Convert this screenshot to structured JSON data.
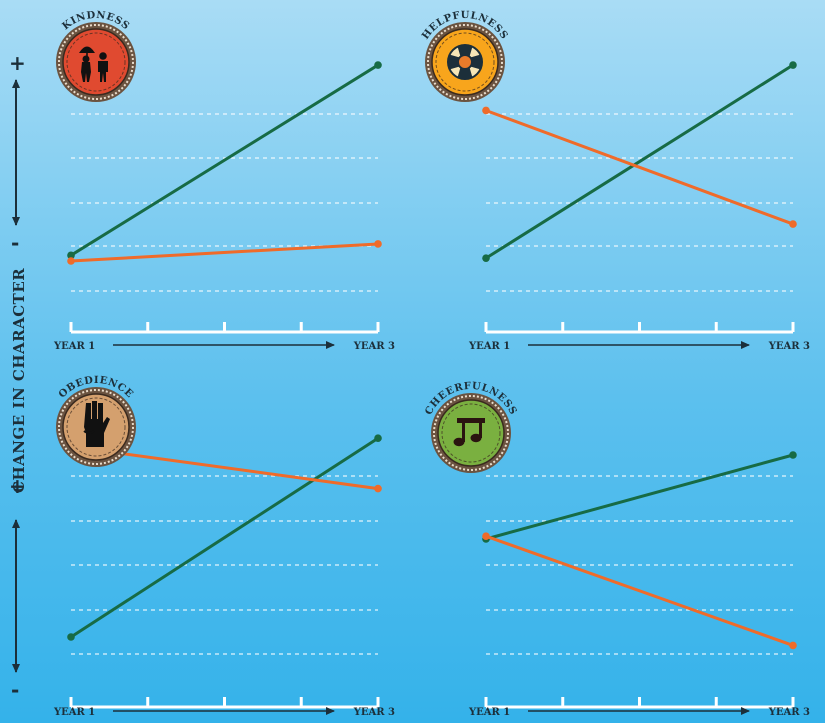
{
  "y_axis": {
    "title": "CHANGE IN CHARACTER",
    "plus": "+",
    "minus": "-"
  },
  "colors": {
    "series_a": "#176b45",
    "series_b": "#ef6b2a",
    "grid": "#ffffff",
    "axis": "#ffffff",
    "text": "#1c2f3a"
  },
  "chart_data": [
    {
      "type": "line",
      "title": "KINDNESS",
      "badge": {
        "icon": "umbrella-people-icon",
        "color": "#e04a30"
      },
      "x": [
        "YEAR 1",
        "YEAR 3"
      ],
      "series": [
        {
          "color": "#176b45",
          "values": [
            0.27,
            0.94
          ]
        },
        {
          "color": "#ef6b2a",
          "values": [
            0.25,
            0.31
          ]
        }
      ],
      "ylim": [
        0,
        1
      ],
      "grid": true
    },
    {
      "type": "line",
      "title": "HELPFULNESS",
      "badge": {
        "icon": "life-ring-icon",
        "color": "#f8a51c"
      },
      "x": [
        "YEAR 1",
        "YEAR 3"
      ],
      "series": [
        {
          "color": "#176b45",
          "values": [
            0.26,
            0.94
          ]
        },
        {
          "color": "#ef6b2a",
          "values": [
            0.78,
            0.38
          ]
        }
      ],
      "ylim": [
        0,
        1
      ],
      "grid": true
    },
    {
      "type": "line",
      "title": "OBEDIENCE",
      "badge": {
        "icon": "scout-salute-hand-icon",
        "color": "#d4a06e"
      },
      "x": [
        "YEAR 1",
        "YEAR 3"
      ],
      "series": [
        {
          "color": "#176b45",
          "values": [
            0.25,
            0.96
          ]
        },
        {
          "color": "#ef6b2a",
          "values": [
            0.93,
            0.78
          ]
        }
      ],
      "ylim": [
        0,
        1
      ],
      "grid": true
    },
    {
      "type": "line",
      "title": "CHEERFULNESS",
      "badge": {
        "icon": "music-note-icon",
        "color": "#7ab040"
      },
      "x": [
        "YEAR 1",
        "YEAR 3"
      ],
      "series": [
        {
          "color": "#176b45",
          "values": [
            0.6,
            0.9
          ]
        },
        {
          "color": "#ef6b2a",
          "values": [
            0.61,
            0.22
          ]
        }
      ],
      "ylim": [
        0,
        1
      ],
      "grid": true
    }
  ]
}
